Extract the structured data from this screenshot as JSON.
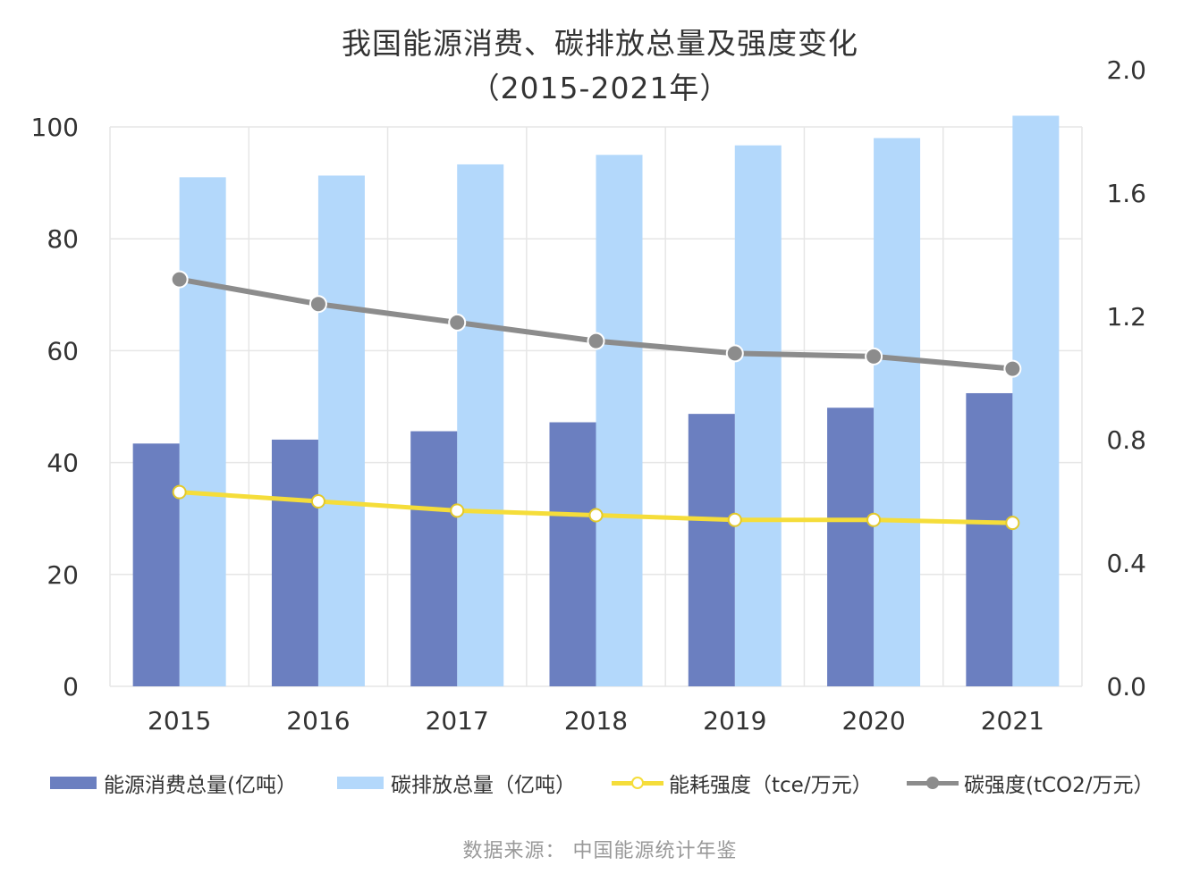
{
  "title_line1": "我国能源消费、碳排放总量及强度变化",
  "title_line2": "（2015-2021年）",
  "source": "数据来源： 中国能源统计年鉴",
  "colors": {
    "energy_bar": "#6b7fc0",
    "carbon_bar": "#b3d8fb",
    "energy_intensity": "#f5dd3a",
    "carbon_intensity": "#8c8c8c",
    "gridline": "#e6e6e6"
  },
  "legend": [
    {
      "label": "能源消费总量(亿吨）",
      "kind": "bar",
      "color": "#6b7fc0"
    },
    {
      "label": "碳排放总量（亿吨）",
      "kind": "bar",
      "color": "#b3d8fb"
    },
    {
      "label": "能耗强度（tce/万元）",
      "kind": "line",
      "color": "#f5dd3a",
      "marker": "#ffffff"
    },
    {
      "label": "碳强度(tCO2/万元）",
      "kind": "line",
      "color": "#8c8c8c",
      "marker": "#8c8c8c"
    }
  ],
  "chart_data": {
    "type": "bar",
    "title": "我国能源消费、碳排放总量及强度变化（2015-2021年）",
    "categories": [
      "2015",
      "2016",
      "2017",
      "2018",
      "2019",
      "2020",
      "2021"
    ],
    "y_left": {
      "min": 0,
      "max": 100,
      "ticks": [
        "0",
        "20",
        "40",
        "60",
        "80",
        "100"
      ]
    },
    "y_right": {
      "min": 0,
      "max": 2.0,
      "ticks": [
        "0.0",
        "0.4",
        "0.8",
        "1.2",
        "1.6",
        "2.0"
      ]
    },
    "grid": true,
    "legend_position": "bottom",
    "series": [
      {
        "name": "能源消费总量(亿吨）",
        "type": "bar",
        "axis": "left",
        "values": [
          43.4,
          44.1,
          45.6,
          47.2,
          48.7,
          49.8,
          52.4
        ]
      },
      {
        "name": "碳排放总量（亿吨）",
        "type": "bar",
        "axis": "left",
        "values": [
          91.0,
          91.3,
          93.3,
          95.0,
          96.7,
          98.0,
          102.0
        ]
      },
      {
        "name": "能耗强度（tce/万元）",
        "type": "line",
        "axis": "right",
        "values": [
          0.63,
          0.6,
          0.57,
          0.555,
          0.54,
          0.54,
          0.53
        ]
      },
      {
        "name": "碳强度(tCO2/万元）",
        "type": "line",
        "axis": "right",
        "values": [
          1.32,
          1.24,
          1.18,
          1.12,
          1.08,
          1.07,
          1.03
        ]
      }
    ]
  }
}
